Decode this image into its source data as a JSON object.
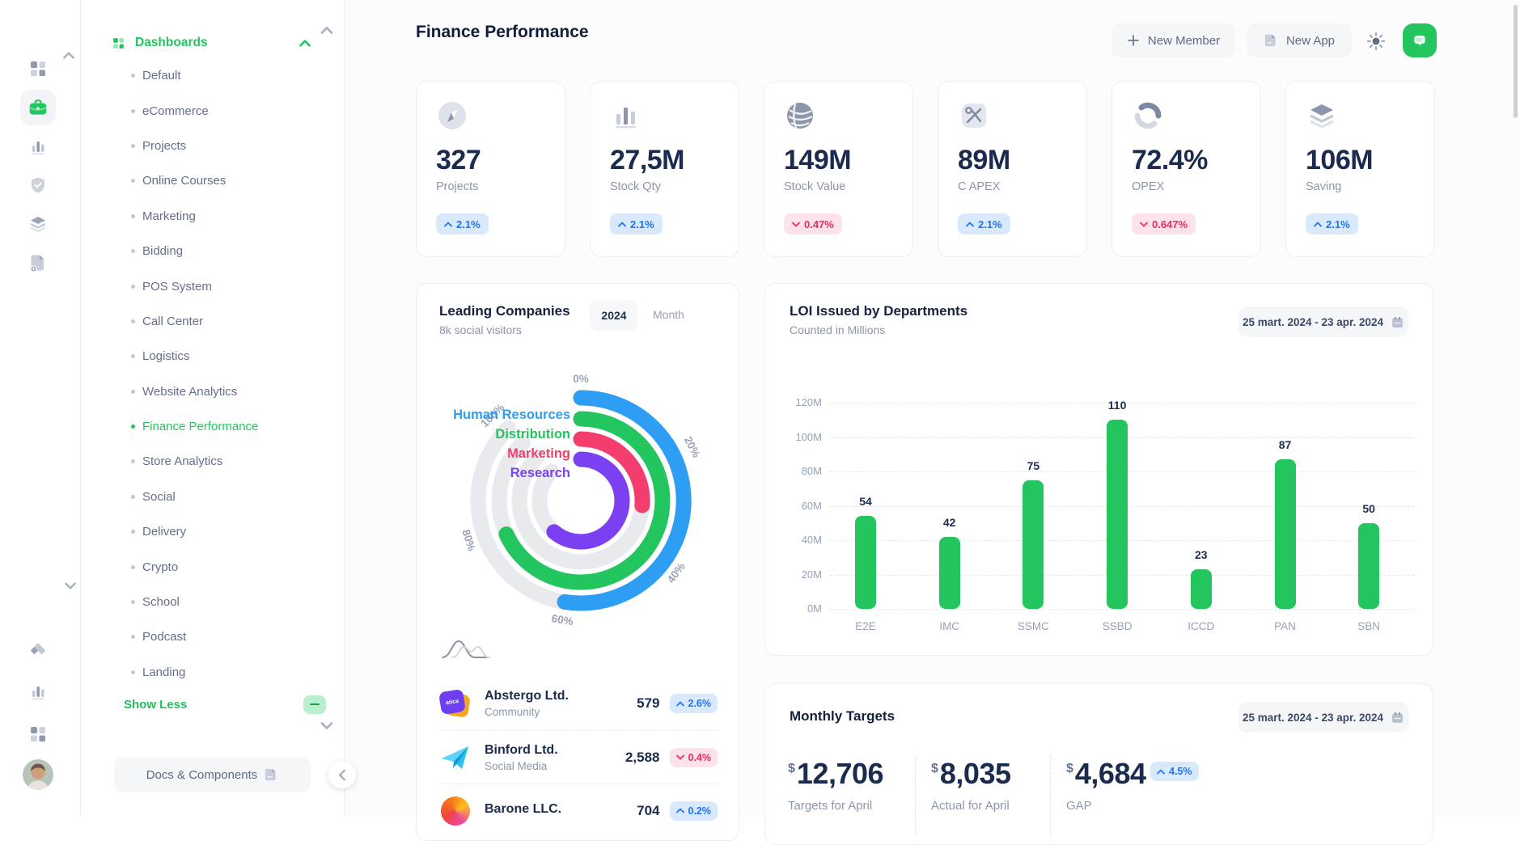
{
  "header": {
    "title": "Finance Performance",
    "new_member": "New Member",
    "new_app": "New App"
  },
  "rail": {
    "icons": [
      "apps-icon",
      "briefcase-icon",
      "analytics-icon",
      "shield-check-icon",
      "layers-icon",
      "file-new-icon",
      "gem-icon",
      "stats-icon",
      "grid-icon",
      "user-avatar"
    ],
    "active": "briefcase-icon"
  },
  "sidebar": {
    "header": "Dashboards",
    "items": [
      "Default",
      "eCommerce",
      "Projects",
      "Online Courses",
      "Marketing",
      "Bidding",
      "POS System",
      "Call Center",
      "Logistics",
      "Website Analytics",
      "Finance Performance",
      "Store Analytics",
      "Social",
      "Delivery",
      "Crypto",
      "School",
      "Podcast",
      "Landing"
    ],
    "active_item": "Finance Performance",
    "show_less": "Show Less",
    "docs_button": "Docs & Components"
  },
  "stat_cards": [
    {
      "icon": "compass-icon",
      "value": "327",
      "label": "Projects",
      "delta": "2.1%",
      "direction": "up"
    },
    {
      "icon": "bars-icon",
      "value": "27,5M",
      "label": "Stock Qty",
      "delta": "2.1%",
      "direction": "up"
    },
    {
      "icon": "globe-icon",
      "value": "149M",
      "label": "Stock Value",
      "delta": "0.47%",
      "direction": "down"
    },
    {
      "icon": "map-icon",
      "value": "89M",
      "label": "C APEX",
      "delta": "2.1%",
      "direction": "up"
    },
    {
      "icon": "refresh-icon",
      "value": "72.4%",
      "label": "OPEX",
      "delta": "0.647%",
      "direction": "down"
    },
    {
      "icon": "stack-icon",
      "value": "106M",
      "label": "Saving",
      "delta": "2.1%",
      "direction": "up"
    }
  ],
  "leading_companies": {
    "title": "Leading Companies",
    "subtitle": "8k social visitors",
    "toggle": {
      "selected": "2024",
      "other": "Month"
    },
    "companies": [
      {
        "icon": "abstergo-logo",
        "logo_text": "atica",
        "name": "Abstergo Ltd.",
        "category": "Community",
        "value": "579",
        "delta": "2.6%",
        "direction": "up"
      },
      {
        "icon": "binford-logo",
        "logo_text": "",
        "name": "Binford Ltd.",
        "category": "Social Media",
        "value": "2,588",
        "delta": "0.4%",
        "direction": "down"
      },
      {
        "icon": "barone-logo",
        "logo_text": "",
        "name": "Barone LLC.",
        "category": "",
        "value": "704",
        "delta": "0.2%",
        "direction": "up"
      }
    ]
  },
  "loi": {
    "title": "LOI Issued by Departments",
    "subtitle": "Counted in Millions",
    "date_range": "25 mart. 2024 - 23 apr. 2024"
  },
  "monthly_targets": {
    "title": "Monthly Targets",
    "date_range": "25 mart. 2024 - 23 apr. 2024",
    "stats": [
      {
        "currency": "$",
        "value": "12,706",
        "label": "Targets for April"
      },
      {
        "currency": "$",
        "value": "8,035",
        "label": "Actual for April"
      },
      {
        "currency": "$",
        "value": "4,684",
        "label": "GAP",
        "badge": "4.5%",
        "badge_direction": "up"
      }
    ]
  },
  "chart_data": [
    {
      "type": "radialBar",
      "title": "Leading Companies",
      "categories": [
        "Human Resources",
        "Distribution",
        "Marketing",
        "Research"
      ],
      "values": [
        60,
        78,
        30,
        70
      ],
      "unit": "%",
      "colors": [
        "#2e9df4",
        "#22c55e",
        "#f23d6d",
        "#7a40f2"
      ],
      "track_color": "#e9eaee",
      "scale_labels": [
        "0%",
        "20%",
        "40%",
        "60%",
        "80%",
        "100%"
      ],
      "track_sweep_deg": 315,
      "legend_position": "top-left"
    },
    {
      "type": "bar",
      "title": "LOI Issued by Departments",
      "categories": [
        "E2E",
        "IMC",
        "SSMC",
        "SSBD",
        "ICCD",
        "PAN",
        "SBN"
      ],
      "values": [
        54,
        42,
        75,
        110,
        23,
        87,
        50
      ],
      "ylabel_ticks": [
        "0M",
        "20M",
        "40M",
        "60M",
        "80M",
        "100M",
        "120M"
      ],
      "ylim": [
        0,
        120
      ],
      "grid": "dashed",
      "bar_color": "#22c55e"
    }
  ],
  "accent_colors": {
    "green": "#22c55e",
    "badge_up_text": "#1d74f5",
    "badge_down_text": "#ef2964",
    "navy": "#1b2b4e",
    "gray_label": "#8c96ab"
  }
}
